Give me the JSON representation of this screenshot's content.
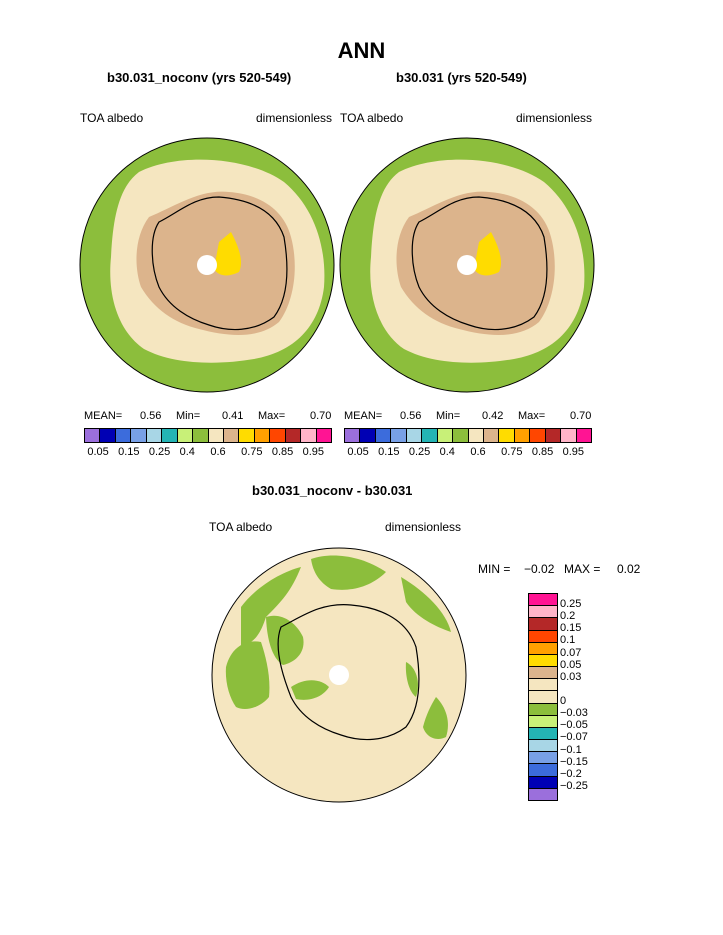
{
  "title": "ANN",
  "panel_left": {
    "case": "b30.031_noconv (yrs 520-549)",
    "var_label": "TOA albedo",
    "units": "dimensionless",
    "mean_label": "MEAN=",
    "mean": "0.56",
    "min_label": "Min=",
    "min": "0.41",
    "max_label": "Max=",
    "max": "0.70"
  },
  "panel_right": {
    "case": "b30.031 (yrs 520-549)",
    "var_label": "TOA albedo",
    "units": "dimensionless",
    "mean_label": "MEAN=",
    "mean": "0.56",
    "min_label": "Min=",
    "min": "0.42",
    "max_label": "Max=",
    "max": "0.70"
  },
  "colorbar_top": {
    "colors": [
      "#9b6fdc",
      "#0000b4",
      "#3c6cdc",
      "#78a0e6",
      "#a8d6e6",
      "#24b4b4",
      "#c8f078",
      "#8cbe3c",
      "#f5e6c0",
      "#dcb48c",
      "#ffdc00",
      "#ffa000",
      "#ff4600",
      "#b42828",
      "#ffb4c8",
      "#ff1493"
    ],
    "labels": [
      "0.05",
      "0.15",
      "0.25",
      "0.4",
      "0.6",
      "0.75",
      "0.85",
      "0.95"
    ]
  },
  "panel_diff": {
    "case": "b30.031_noconv - b30.031",
    "var_label": "TOA albedo",
    "units": "dimensionless",
    "min_label": "MIN =",
    "min": "−0.02",
    "max_label": "MAX =",
    "max": "0.02"
  },
  "colorbar_diff": {
    "colors": [
      "#ff1493",
      "#ffb4c8",
      "#b42828",
      "#ff4600",
      "#ffa000",
      "#ffdc00",
      "#dcb48c",
      "#f5e6c0",
      "#f5e6c0",
      "#8cbe3c",
      "#c8f078",
      "#24b4b4",
      "#a8d6e6",
      "#78a0e6",
      "#3c6cdc",
      "#0000b4",
      "#9b6fdc"
    ],
    "labels": [
      "0.25",
      "0.2",
      "0.15",
      "0.1",
      "0.07",
      "0.05",
      "0.03",
      "0",
      "−0.03",
      "−0.05",
      "−0.07",
      "−0.1",
      "−0.15",
      "−0.2",
      "−0.25"
    ]
  },
  "map_colors": {
    "ocean_outer": "#8cbe3c",
    "ocean_mid": "#f5e6c0",
    "ice": "#dcb48c",
    "high": "#ffdc00",
    "pole": "#ffffff"
  }
}
